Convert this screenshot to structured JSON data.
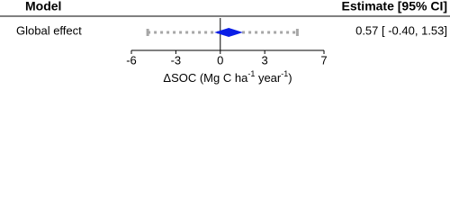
{
  "header": {
    "model": "Model",
    "estimate": "Estimate [95% CI]"
  },
  "chart_data": {
    "type": "forest",
    "categories": [
      "Global effect"
    ],
    "values": [
      0.57
    ],
    "ci_low": [
      -0.4
    ],
    "ci_high": [
      1.53
    ],
    "pi_low": [
      -4.9
    ],
    "pi_high": [
      5.2
    ],
    "value_labels": [
      "0.57 [ -0.40,  1.53]"
    ],
    "color": "#0a1ee6",
    "interval_color": "#a6a6a6",
    "xlim": [
      -6,
      7
    ],
    "xticks": [
      -6,
      -3,
      0,
      3,
      7
    ],
    "x_label": {
      "text": "ΔSOC (Mg C ha",
      "sup1": "-1",
      "mid": " year",
      "sup2": "-1",
      "end": ")"
    }
  }
}
